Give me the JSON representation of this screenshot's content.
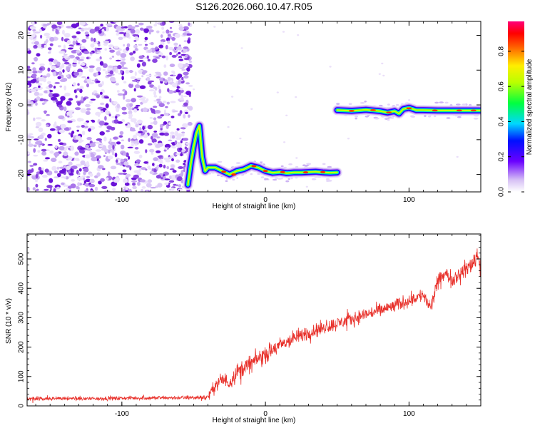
{
  "colors": {
    "trace": "#e8302a",
    "scatter": "#7a2bd6",
    "background": "#ffffff"
  },
  "chart_data": [
    {
      "type": "heatmap",
      "title": "S126.2026.060.10.47.R05",
      "xlabel": "Height of straight line (km)",
      "ylabel": "Frequency (Hz)",
      "xlim": [
        -166,
        150
      ],
      "ylim": [
        -25,
        24
      ],
      "xticks": [
        -100,
        0,
        100
      ],
      "yticks": [
        -20,
        -10,
        0,
        10,
        20
      ],
      "colorbar": {
        "label": "Normalized spectral amplitude",
        "range": [
          0,
          0.97
        ],
        "ticks": [
          0,
          0.2,
          0.4,
          0.6,
          0.8
        ]
      },
      "noise_region": {
        "x_range": [
          -166,
          -52
        ],
        "y_range": [
          -25,
          24
        ]
      },
      "ridge": {
        "x": [
          -54,
          -52,
          -50,
          -48,
          -46,
          -44,
          -42,
          -40,
          -35,
          -30,
          -25,
          -20,
          -15,
          -10,
          -5,
          0,
          5,
          10,
          15,
          20,
          25,
          30,
          35,
          40,
          45,
          50
        ],
        "frequency": [
          -23,
          -17,
          -12,
          -8,
          -6,
          -15,
          -19,
          -18,
          -18,
          -19,
          -20,
          -19,
          -18.5,
          -17.5,
          -18,
          -19,
          -19.5,
          -19.3,
          -19.6,
          -19.4,
          -19.4,
          -19.3,
          -19.2,
          -19.4,
          -19.5,
          -19.4
        ]
      },
      "upper_band": {
        "x": [
          50,
          60,
          70,
          80,
          85,
          90,
          93,
          96,
          100,
          105,
          110,
          120,
          130,
          140,
          150
        ],
        "frequency": [
          -1.5,
          -1.7,
          -1.4,
          -1.8,
          -2.2,
          -1.8,
          -2.5,
          -1.2,
          -0.8,
          -1.5,
          -1.5,
          -1.6,
          -1.6,
          -1.6,
          -1.6
        ]
      }
    },
    {
      "type": "line",
      "xlabel": "Height of straight line (km)",
      "ylabel": "SNR (10 * v/v)",
      "xlim": [
        -166,
        150
      ],
      "ylim": [
        0,
        585
      ],
      "xticks": [
        -100,
        0,
        100
      ],
      "yticks": [
        0,
        100,
        200,
        300,
        400,
        500
      ],
      "series": [
        {
          "name": "SNR",
          "envelope_x": [
            -166,
            -120,
            -80,
            -50,
            -40,
            -35,
            -30,
            -25,
            -20,
            -10,
            0,
            10,
            20,
            30,
            40,
            50,
            60,
            70,
            80,
            90,
            100,
            110,
            115,
            120,
            125,
            130,
            135,
            140,
            145,
            148,
            150
          ],
          "envelope_y": [
            25,
            25,
            27,
            28,
            30,
            70,
            90,
            80,
            115,
            145,
            175,
            205,
            230,
            250,
            265,
            280,
            295,
            312,
            325,
            340,
            360,
            378,
            330,
            420,
            450,
            430,
            450,
            465,
            490,
            520,
            470
          ],
          "noise_amplitude": [
            10,
            10,
            10,
            10,
            18,
            35,
            40,
            40,
            45,
            45,
            45,
            40,
            40,
            38,
            35,
            35,
            35,
            35,
            35,
            35,
            35,
            35,
            40,
            40,
            40,
            40,
            40,
            45,
            50,
            55,
            55
          ]
        }
      ]
    }
  ]
}
